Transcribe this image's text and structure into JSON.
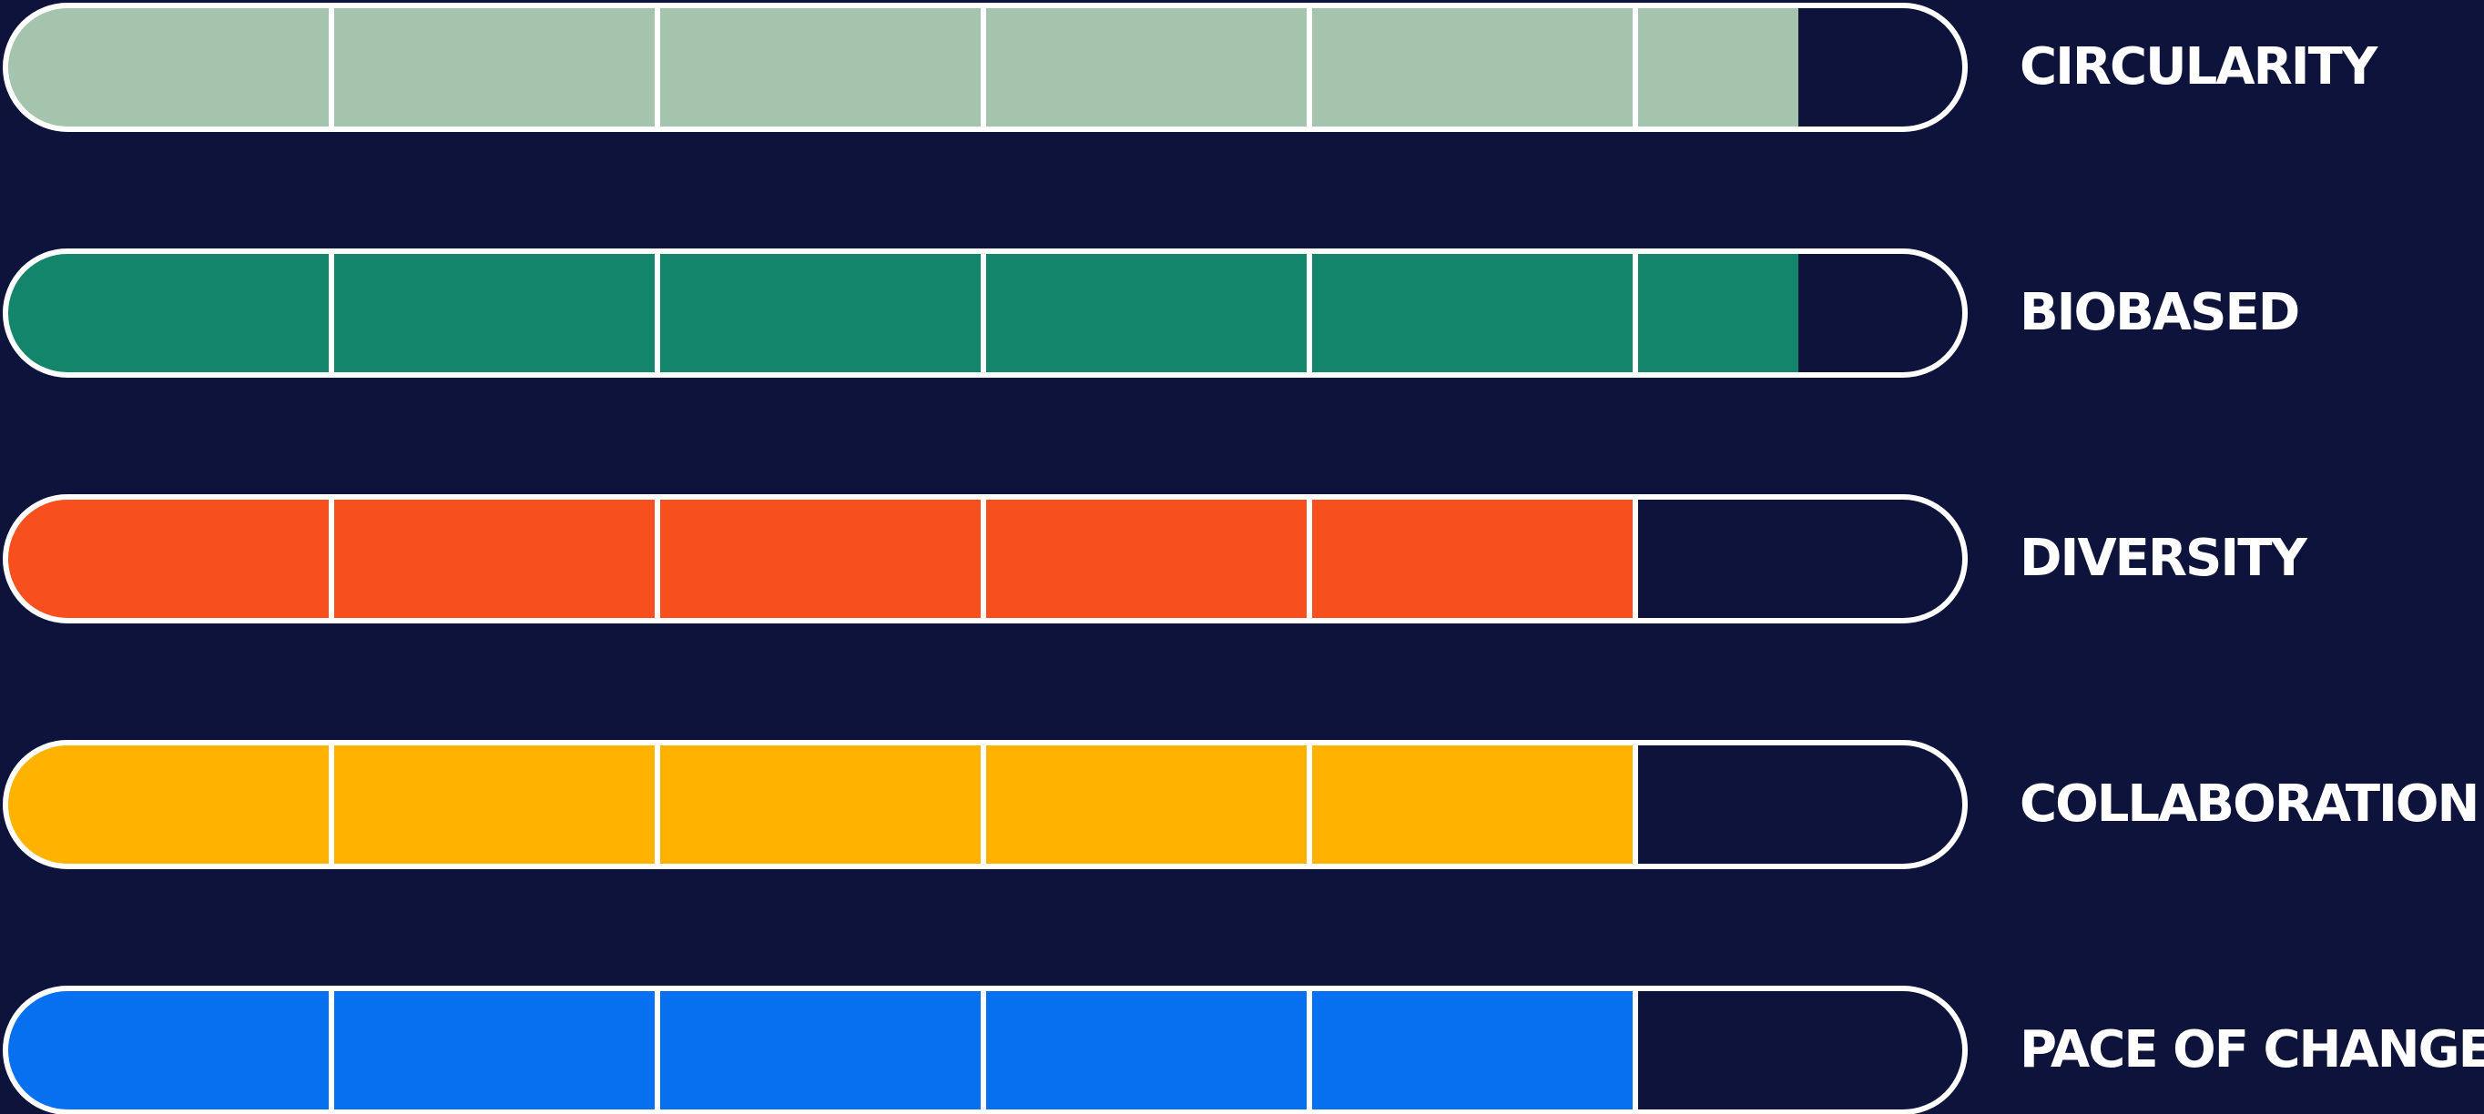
{
  "chart_data": {
    "type": "bar",
    "orientation": "horizontal",
    "categories": [
      "CIRCULARITY",
      "BIOBASED",
      "DIVERSITY",
      "COLLABORATION",
      "PACE OF CHANGE"
    ],
    "values": [
      5.5,
      5.5,
      5,
      5,
      5
    ],
    "xlim": [
      0,
      6
    ],
    "segments": 6,
    "colors": [
      "#a5c4ad",
      "#13856b",
      "#f74f1e",
      "#ffb300",
      "#0670f0"
    ],
    "grid": false,
    "legend": "none"
  }
}
